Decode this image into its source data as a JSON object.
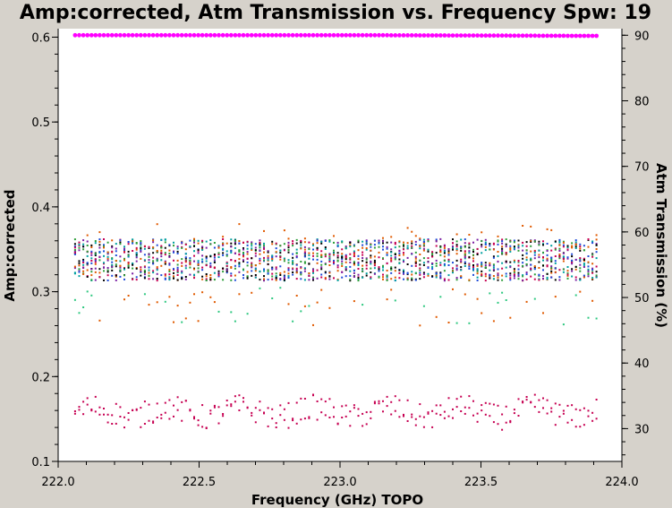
{
  "chart_data": {
    "type": "scatter",
    "title": "Amp:corrected, Atm Transmission vs. Frequency Spw: 19",
    "xlabel": "Frequency (GHz) TOPO",
    "ylabel": "Amp:corrected",
    "y2label": "Atm Transmission (%)",
    "xlim": [
      222.0,
      224.0
    ],
    "ylim": [
      0.1,
      0.61
    ],
    "y2lim": [
      25,
      91
    ],
    "x_ticks": [
      "222.0",
      "222.5",
      "223.0",
      "223.5",
      "224.0"
    ],
    "y_ticks": [
      "0.1",
      "0.2",
      "0.3",
      "0.4",
      "0.5",
      "0.6"
    ],
    "y2_ticks": [
      "30",
      "40",
      "50",
      "60",
      "70",
      "80",
      "90"
    ],
    "grid": false,
    "colors": {
      "background": "#d6d2cb",
      "plot_area": "#ffffff",
      "atm_curve": "#ff00ff",
      "points": [
        "#000000",
        "#7a1fa2",
        "#1f4bd8",
        "#2e9e3a",
        "#e05a00",
        "#c60052",
        "#00a0a0",
        "#a0a000",
        "#ff7f00",
        "#00c880"
      ]
    },
    "series": [
      {
        "name": "",
        "role": "atm_transmission",
        "axis": "right",
        "x_start": 222.06,
        "x_end": 223.91,
        "y_start": 90.0,
        "y_mid_x": 223.14,
        "y_mid": 90.0,
        "y_end": 89.9,
        "color": "#ff00ff"
      },
      {
        "name": "",
        "role": "main_band",
        "axis": "left",
        "x_start": 222.06,
        "x_end": 223.91,
        "y_low": 0.313,
        "y_high": 0.362,
        "outlier_max": 0.38
      },
      {
        "name": "",
        "role": "lower_scatter",
        "axis": "left",
        "x_start": 222.06,
        "x_end": 223.91,
        "y_low": 0.26,
        "y_high": 0.305
      },
      {
        "name": "",
        "role": "low_band",
        "axis": "left",
        "x_start": 222.06,
        "x_end": 223.91,
        "y_low": 0.14,
        "y_high": 0.185,
        "color": "#c60052"
      }
    ]
  }
}
